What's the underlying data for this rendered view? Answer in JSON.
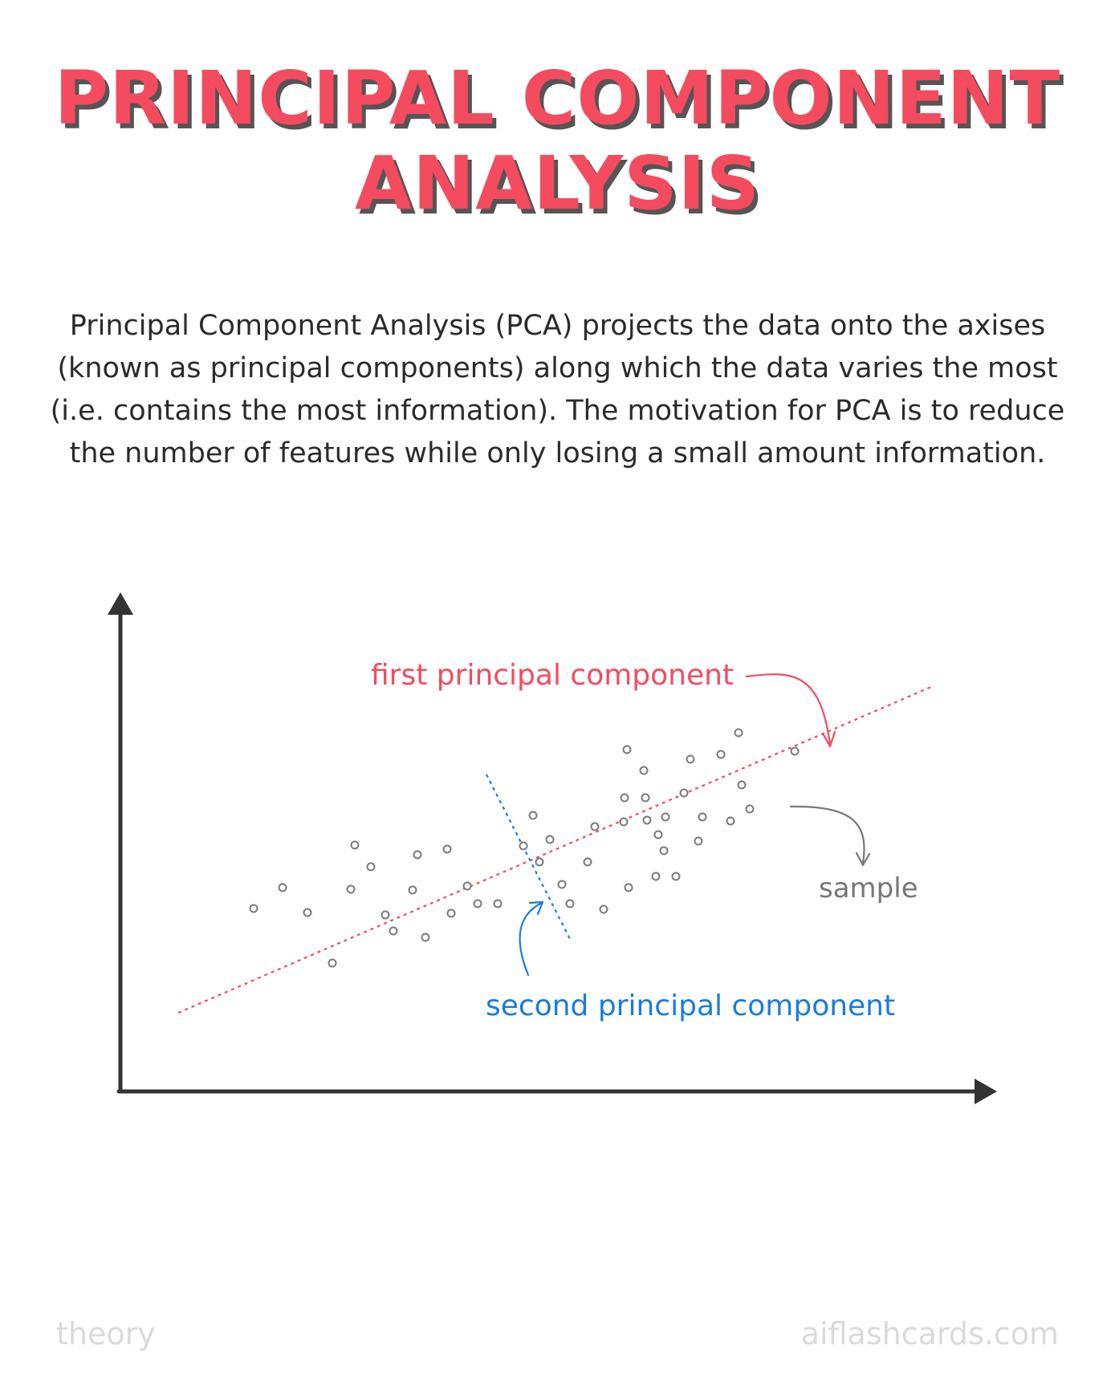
{
  "title": {
    "line1": "PRINCIPAL COMPONENT",
    "line2": "ANALYSIS"
  },
  "description": "Principal Component Analysis (PCA) projects the data onto the axises (known as principal components) along which the data varies the most (i.e. contains the most information). The motivation for PCA is to reduce the number of features while only losing a small amount information.",
  "diagram": {
    "labels": {
      "first_pc": "first principal component",
      "second_pc": "second principal component",
      "sample": "sample"
    },
    "icons": [
      "y-axis-arrow-icon",
      "x-axis-arrow-icon",
      "callout-arrow-icon"
    ],
    "colors": {
      "first_pc": "#f44b5f",
      "second_pc": "#1a7ce0",
      "sample": "#777777",
      "axes": "#333333"
    }
  },
  "footer": {
    "left": "theory",
    "right": "aiflashcards.com"
  }
}
